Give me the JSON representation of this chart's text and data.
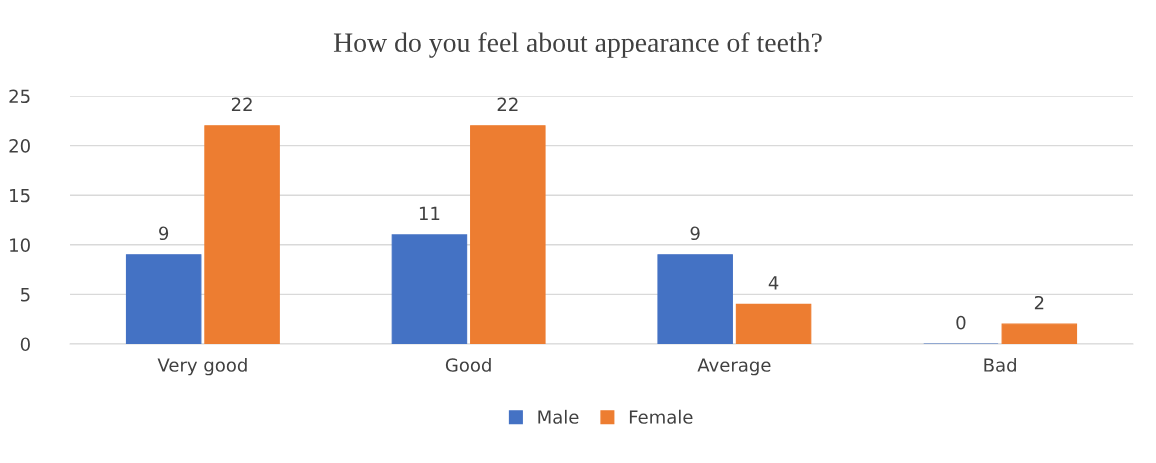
{
  "chart_data": {
    "type": "bar",
    "title": "How do you feel about appearance of teeth?",
    "categories": [
      "Very good",
      "Good",
      "Average",
      "Bad"
    ],
    "series": [
      {
        "name": "Male",
        "color": "#4472c4",
        "values": [
          9,
          11,
          9,
          0
        ]
      },
      {
        "name": "Female",
        "color": "#ed7d31",
        "values": [
          22,
          22,
          4,
          2
        ]
      }
    ],
    "ylim": [
      0,
      25
    ],
    "yticks": [
      0,
      5,
      10,
      15,
      20,
      25
    ],
    "grid": "y",
    "legend": "bottom",
    "data_labels": true
  }
}
